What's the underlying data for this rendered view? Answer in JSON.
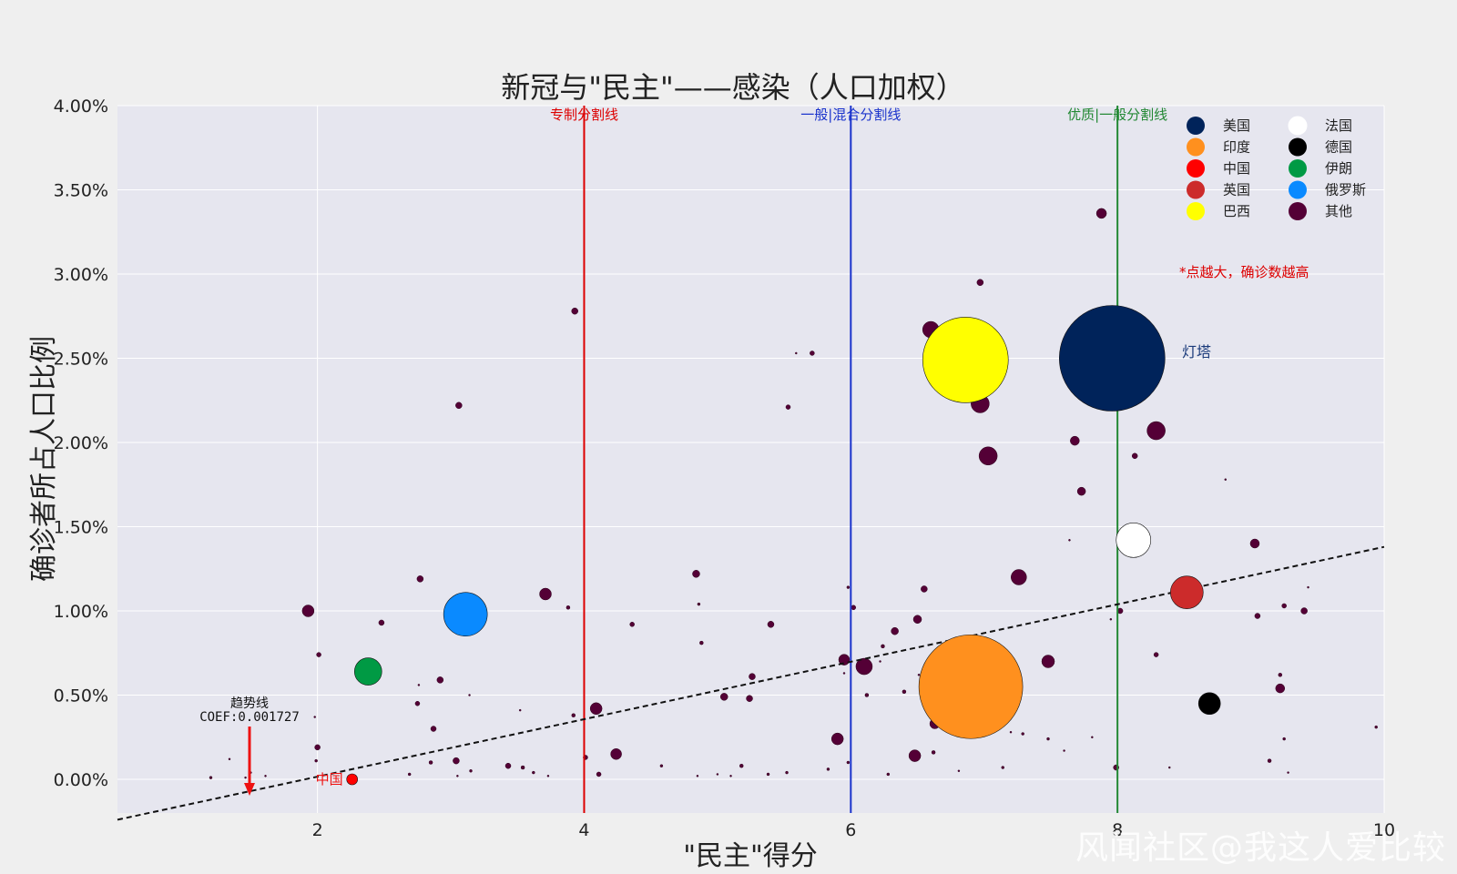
{
  "watermark": "风闻社区@我这人爱比较",
  "colors": {
    "background": "#efefef",
    "plot_bg": "#e6e6ef",
    "grid": "#ffffff",
    "others": "#540036",
    "autocracy_line": "#dd0000",
    "hybrid_line": "#3355aa",
    "flawed_line": "#338844",
    "note": "#dd0000",
    "beacon": "#1a3a7a"
  },
  "chart_data": {
    "type": "scatter",
    "title": "新冠与\"民主\"——感染（人口加权）",
    "xlabel": "\"民主\"得分",
    "ylabel": "确诊者所占人口比例",
    "xlim": [
      0.5,
      10
    ],
    "ylim": [
      -0.2,
      4.0
    ],
    "xticks": [
      "2",
      "4",
      "6",
      "8",
      "10"
    ],
    "yticks": [
      "0.00%",
      "0.50%",
      "1.00%",
      "1.50%",
      "2.00%",
      "2.50%",
      "3.00%",
      "3.50%",
      "4.00%"
    ],
    "grid": true,
    "legend_position": "top-right",
    "vlines": [
      {
        "x": 4,
        "label": "专制分割线",
        "color": "#dd0000"
      },
      {
        "x": 6,
        "label": "一般|混合分割线",
        "color": "#1a33cc"
      },
      {
        "x": 8,
        "label": "优质|一般分割线",
        "color": "#228833"
      }
    ],
    "trendline": {
      "coef": 0.001727,
      "label": "趋势线",
      "coef_label": "COEF:0.001727",
      "x": [
        0.5,
        10
      ],
      "y": [
        -0.24,
        1.38
      ]
    },
    "note": "*点越大，确诊数越高",
    "highlighted": [
      {
        "name": "美国",
        "x": 7.96,
        "y": 2.5,
        "color": "#00235a",
        "size": 58,
        "label": "灯塔"
      },
      {
        "name": "印度",
        "x": 6.9,
        "y": 0.55,
        "color": "#ff901e",
        "size": 57
      },
      {
        "name": "中国",
        "x": 2.26,
        "y": 0.0,
        "color": "#ff0000",
        "size": 6,
        "label": "中国"
      },
      {
        "name": "英国",
        "x": 8.52,
        "y": 1.11,
        "color": "#cc2b2b",
        "size": 18
      },
      {
        "name": "巴西",
        "x": 6.86,
        "y": 2.49,
        "color": "#ffff00",
        "size": 47
      },
      {
        "name": "法国",
        "x": 8.12,
        "y": 1.42,
        "color": "#ffffff",
        "size": 19
      },
      {
        "name": "德国",
        "x": 8.69,
        "y": 0.45,
        "color": "#000000",
        "size": 12
      },
      {
        "name": "伊朗",
        "x": 2.38,
        "y": 0.64,
        "color": "#009a44",
        "size": 15
      },
      {
        "name": "俄罗斯",
        "x": 3.11,
        "y": 0.98,
        "color": "#0a8aff",
        "size": 24
      }
    ],
    "legend": [
      {
        "name": "美国",
        "color": "#00235a"
      },
      {
        "name": "法国",
        "color": "#ffffff"
      },
      {
        "name": "印度",
        "color": "#ff901e"
      },
      {
        "name": "德国",
        "color": "#000000"
      },
      {
        "name": "中国",
        "color": "#ff0000"
      },
      {
        "name": "伊朗",
        "color": "#009a44"
      },
      {
        "name": "英国",
        "color": "#cc2b2b"
      },
      {
        "name": "俄罗斯",
        "color": "#0a8aff"
      },
      {
        "name": "巴西",
        "color": "#ffff00"
      },
      {
        "name": "其他",
        "color": "#540036"
      }
    ],
    "others": [
      {
        "x": 7.88,
        "y": 3.36,
        "s": 11
      },
      {
        "x": 6.97,
        "y": 2.95,
        "s": 7
      },
      {
        "x": 3.93,
        "y": 2.78,
        "s": 7
      },
      {
        "x": 6.6,
        "y": 2.67,
        "s": 18
      },
      {
        "x": 5.71,
        "y": 2.53,
        "s": 5
      },
      {
        "x": 5.59,
        "y": 2.53,
        "s": 2
      },
      {
        "x": 3.06,
        "y": 2.22,
        "s": 7
      },
      {
        "x": 5.53,
        "y": 2.21,
        "s": 5
      },
      {
        "x": 6.97,
        "y": 2.23,
        "s": 20
      },
      {
        "x": 7.03,
        "y": 1.92,
        "s": 20
      },
      {
        "x": 8.29,
        "y": 2.07,
        "s": 20
      },
      {
        "x": 7.68,
        "y": 2.01,
        "s": 10
      },
      {
        "x": 8.13,
        "y": 1.92,
        "s": 6
      },
      {
        "x": 7.73,
        "y": 1.71,
        "s": 9
      },
      {
        "x": 8.81,
        "y": 1.78,
        "s": 2
      },
      {
        "x": 7.64,
        "y": 1.42,
        "s": 2
      },
      {
        "x": 9.03,
        "y": 1.4,
        "s": 10
      },
      {
        "x": 7.26,
        "y": 1.2,
        "s": 17
      },
      {
        "x": 9.43,
        "y": 1.14,
        "s": 2
      },
      {
        "x": 2.77,
        "y": 1.19,
        "s": 7
      },
      {
        "x": 3.71,
        "y": 1.1,
        "s": 13
      },
      {
        "x": 4.84,
        "y": 1.22,
        "s": 8
      },
      {
        "x": 6.55,
        "y": 1.13,
        "s": 7
      },
      {
        "x": 1.93,
        "y": 1.0,
        "s": 13
      },
      {
        "x": 3.88,
        "y": 1.02,
        "s": 4
      },
      {
        "x": 4.86,
        "y": 1.04,
        "s": 3
      },
      {
        "x": 6.02,
        "y": 1.02,
        "s": 5
      },
      {
        "x": 8.02,
        "y": 1.0,
        "s": 6
      },
      {
        "x": 9.25,
        "y": 1.03,
        "s": 5
      },
      {
        "x": 9.4,
        "y": 1.0,
        "s": 7
      },
      {
        "x": 9.05,
        "y": 0.97,
        "s": 6
      },
      {
        "x": 2.48,
        "y": 0.93,
        "s": 6
      },
      {
        "x": 4.36,
        "y": 0.92,
        "s": 5
      },
      {
        "x": 5.4,
        "y": 0.92,
        "s": 7
      },
      {
        "x": 6.5,
        "y": 0.95,
        "s": 9
      },
      {
        "x": 6.33,
        "y": 0.88,
        "s": 8
      },
      {
        "x": 4.88,
        "y": 0.81,
        "s": 4
      },
      {
        "x": 6.24,
        "y": 0.79,
        "s": 4
      },
      {
        "x": 2.01,
        "y": 0.74,
        "s": 5
      },
      {
        "x": 5.95,
        "y": 0.71,
        "s": 12
      },
      {
        "x": 6.1,
        "y": 0.67,
        "s": 18
      },
      {
        "x": 7.48,
        "y": 0.7,
        "s": 14
      },
      {
        "x": 8.29,
        "y": 0.74,
        "s": 5
      },
      {
        "x": 5.26,
        "y": 0.61,
        "s": 7
      },
      {
        "x": 2.92,
        "y": 0.59,
        "s": 7
      },
      {
        "x": 9.22,
        "y": 0.62,
        "s": 4
      },
      {
        "x": 9.22,
        "y": 0.54,
        "s": 10
      },
      {
        "x": 4.09,
        "y": 0.42,
        "s": 13
      },
      {
        "x": 5.05,
        "y": 0.49,
        "s": 8
      },
      {
        "x": 5.24,
        "y": 0.48,
        "s": 7
      },
      {
        "x": 6.12,
        "y": 0.5,
        "s": 4
      },
      {
        "x": 6.4,
        "y": 0.52,
        "s": 4
      },
      {
        "x": 2.75,
        "y": 0.45,
        "s": 5
      },
      {
        "x": 3.92,
        "y": 0.38,
        "s": 4
      },
      {
        "x": 6.63,
        "y": 0.33,
        "s": 11
      },
      {
        "x": 2.87,
        "y": 0.3,
        "s": 6
      },
      {
        "x": 5.9,
        "y": 0.24,
        "s": 13
      },
      {
        "x": 2.0,
        "y": 0.19,
        "s": 6
      },
      {
        "x": 4.24,
        "y": 0.15,
        "s": 12
      },
      {
        "x": 6.48,
        "y": 0.14,
        "s": 13
      },
      {
        "x": 6.62,
        "y": 0.16,
        "s": 4
      },
      {
        "x": 4.01,
        "y": 0.13,
        "s": 5
      },
      {
        "x": 3.04,
        "y": 0.11,
        "s": 7
      },
      {
        "x": 2.85,
        "y": 0.1,
        "s": 4
      },
      {
        "x": 3.43,
        "y": 0.08,
        "s": 6
      },
      {
        "x": 3.54,
        "y": 0.07,
        "s": 4
      },
      {
        "x": 4.11,
        "y": 0.03,
        "s": 5
      },
      {
        "x": 5.18,
        "y": 0.08,
        "s": 4
      },
      {
        "x": 7.99,
        "y": 0.07,
        "s": 6
      },
      {
        "x": 9.14,
        "y": 0.11,
        "s": 4
      },
      {
        "x": 7.14,
        "y": 0.07,
        "s": 3
      },
      {
        "x": 9.94,
        "y": 0.31,
        "s": 3
      },
      {
        "x": 7.29,
        "y": 0.27,
        "s": 3
      },
      {
        "x": 7.48,
        "y": 0.24,
        "s": 3
      },
      {
        "x": 9.25,
        "y": 0.24,
        "s": 3
      },
      {
        "x": 1.98,
        "y": 0.37,
        "s": 2
      },
      {
        "x": 2.76,
        "y": 0.56,
        "s": 2
      },
      {
        "x": 3.14,
        "y": 0.5,
        "s": 2
      },
      {
        "x": 3.52,
        "y": 0.41,
        "s": 2
      },
      {
        "x": 6.51,
        "y": 0.62,
        "s": 2
      },
      {
        "x": 5.95,
        "y": 0.63,
        "s": 2
      },
      {
        "x": 6.22,
        "y": 0.7,
        "s": 2
      },
      {
        "x": 6.88,
        "y": 0.85,
        "s": 2
      },
      {
        "x": 7.95,
        "y": 0.95,
        "s": 2
      },
      {
        "x": 5.98,
        "y": 1.14,
        "s": 3
      },
      {
        "x": 1.99,
        "y": 0.11,
        "s": 3
      },
      {
        "x": 1.2,
        "y": 0.01,
        "s": 3
      },
      {
        "x": 1.5,
        "y": 0.04,
        "s": 2
      },
      {
        "x": 1.61,
        "y": 0.02,
        "s": 2
      },
      {
        "x": 2.69,
        "y": 0.03,
        "s": 3
      },
      {
        "x": 3.05,
        "y": 0.02,
        "s": 2
      },
      {
        "x": 3.15,
        "y": 0.05,
        "s": 3
      },
      {
        "x": 3.62,
        "y": 0.04,
        "s": 3
      },
      {
        "x": 3.73,
        "y": 0.02,
        "s": 2
      },
      {
        "x": 4.58,
        "y": 0.08,
        "s": 3
      },
      {
        "x": 4.85,
        "y": 0.02,
        "s": 2
      },
      {
        "x": 5.0,
        "y": 0.03,
        "s": 2
      },
      {
        "x": 5.1,
        "y": 0.02,
        "s": 2
      },
      {
        "x": 5.38,
        "y": 0.03,
        "s": 3
      },
      {
        "x": 5.52,
        "y": 0.04,
        "s": 3
      },
      {
        "x": 5.83,
        "y": 0.06,
        "s": 3
      },
      {
        "x": 5.98,
        "y": 0.1,
        "s": 3
      },
      {
        "x": 6.28,
        "y": 0.03,
        "s": 3
      },
      {
        "x": 6.81,
        "y": 0.05,
        "s": 2
      },
      {
        "x": 7.6,
        "y": 0.17,
        "s": 2
      },
      {
        "x": 7.81,
        "y": 0.25,
        "s": 2
      },
      {
        "x": 8.39,
        "y": 0.07,
        "s": 2
      },
      {
        "x": 9.28,
        "y": 0.04,
        "s": 2
      },
      {
        "x": 7.2,
        "y": 0.28,
        "s": 2
      },
      {
        "x": 1.34,
        "y": 0.12,
        "s": 2
      },
      {
        "x": 1.46,
        "y": 0.01,
        "s": 2
      }
    ]
  }
}
